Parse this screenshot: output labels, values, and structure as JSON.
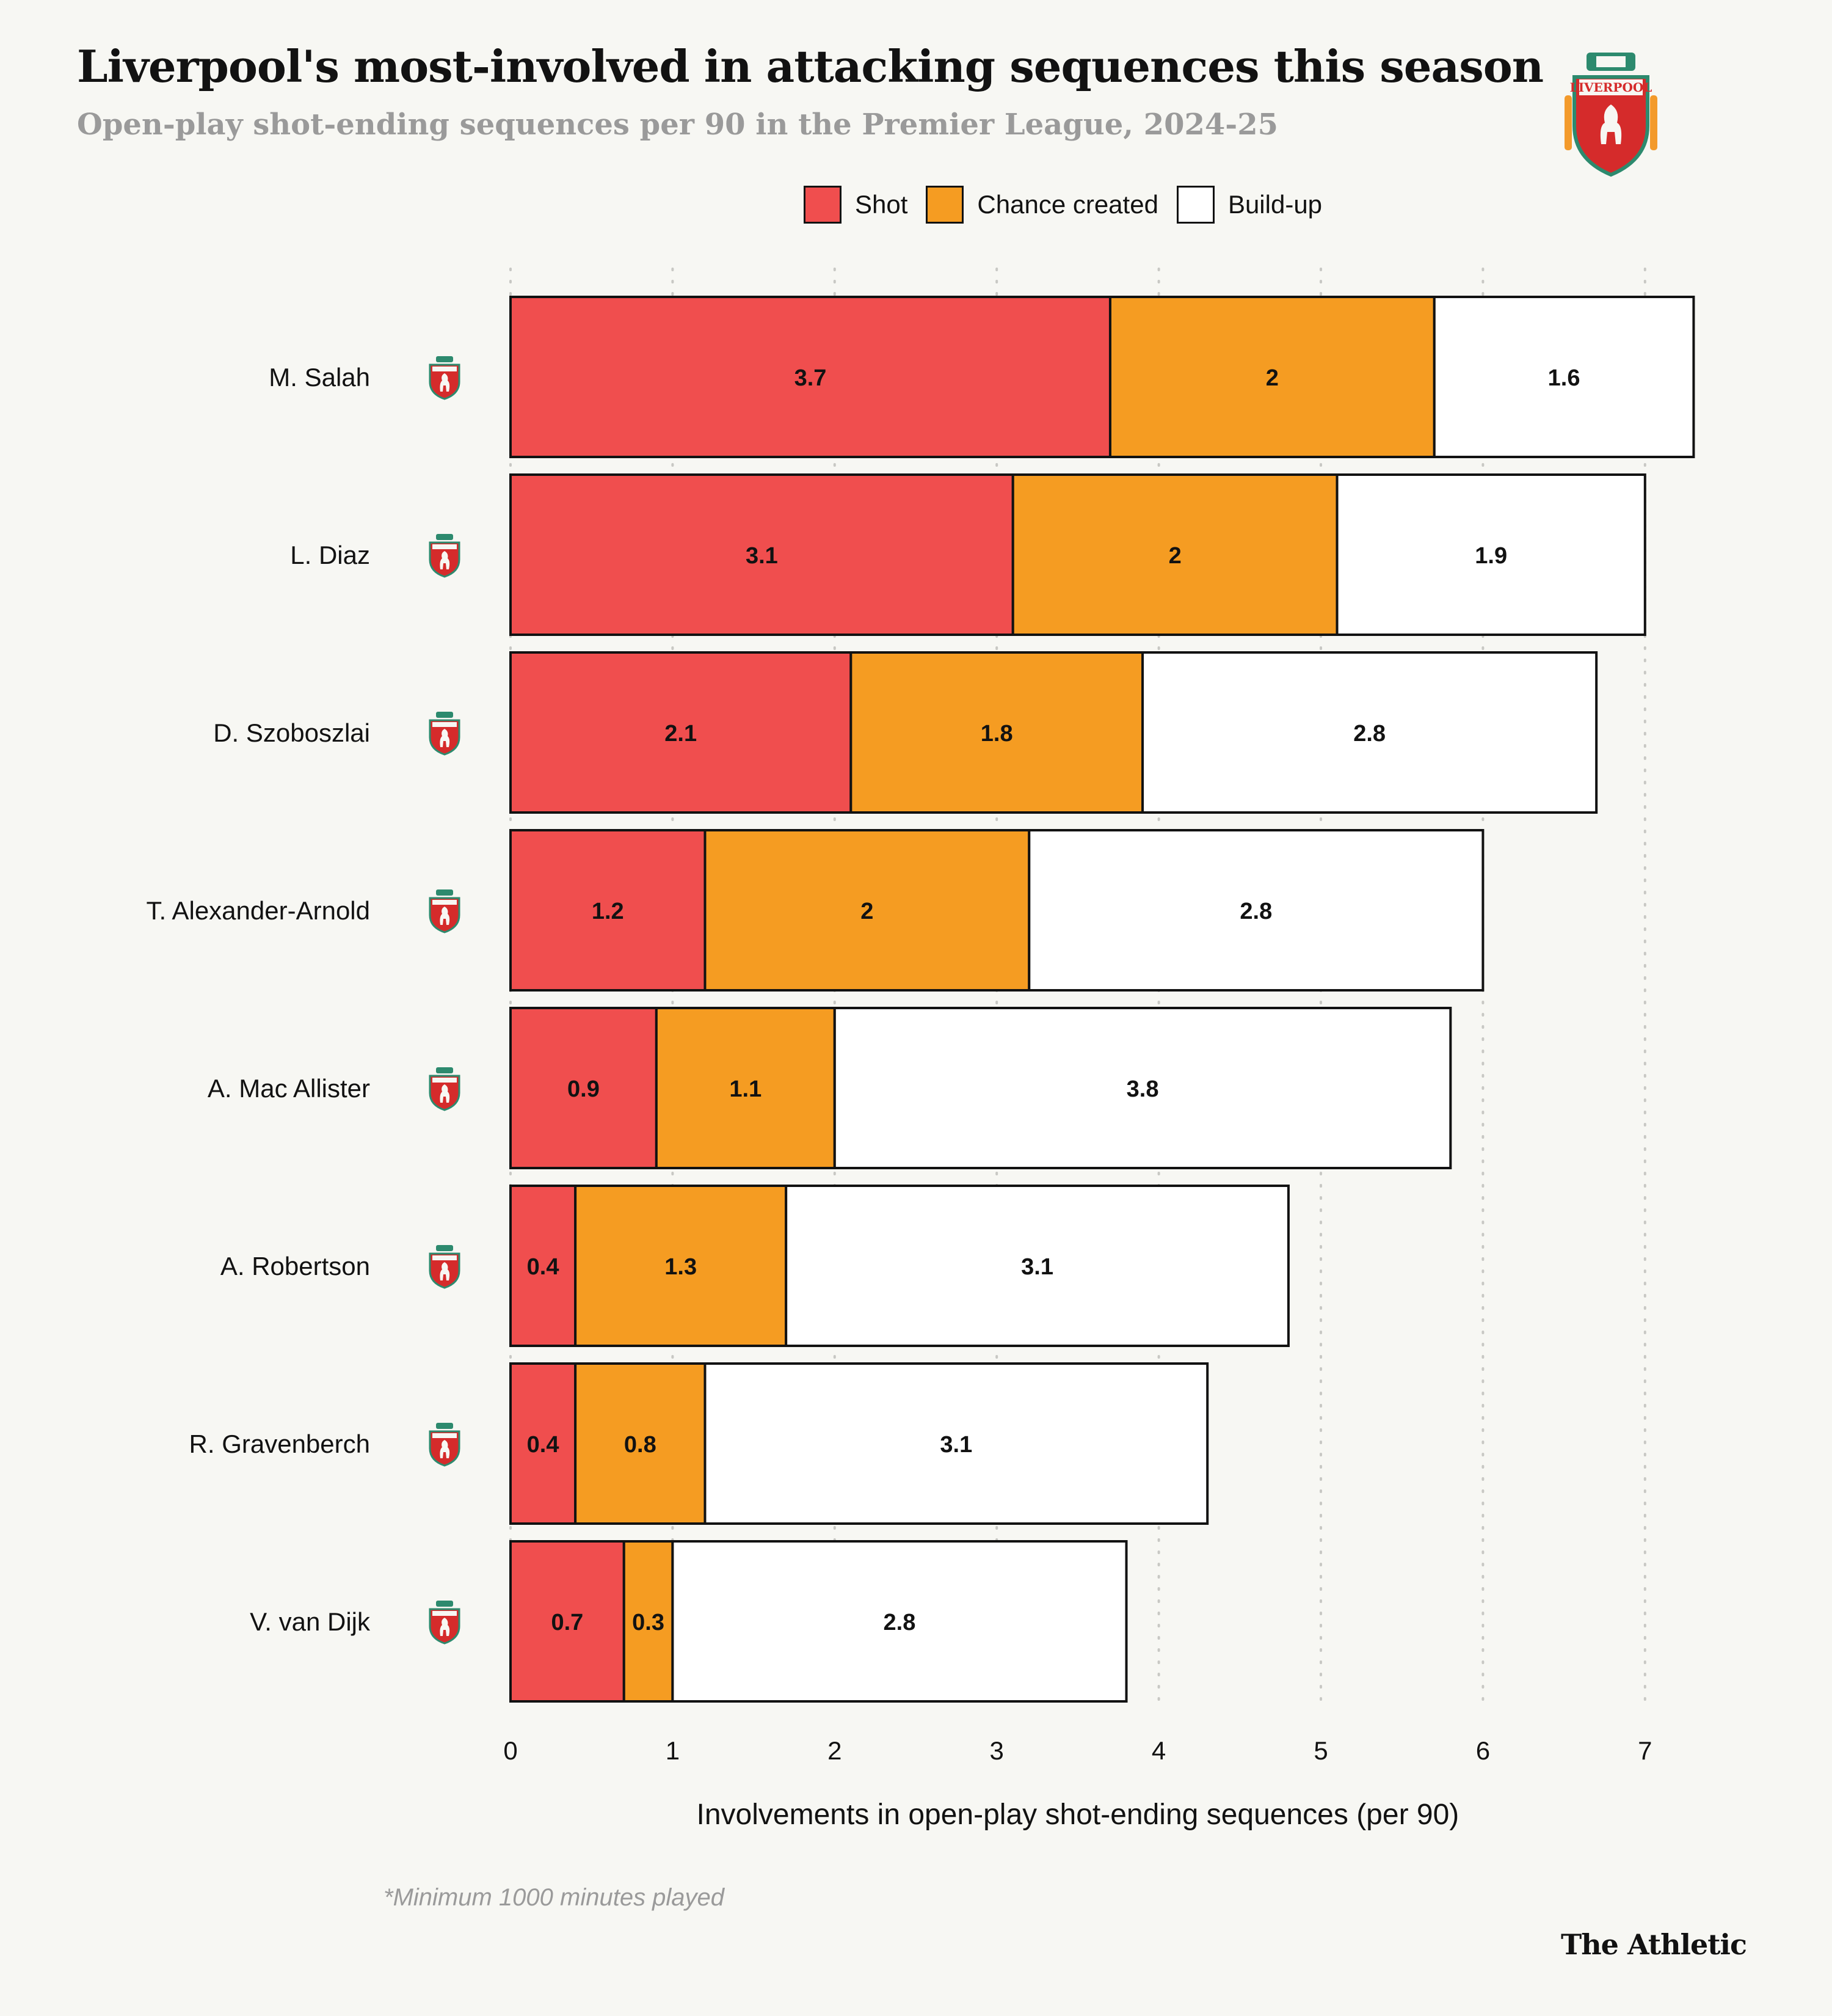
{
  "header": {
    "title": "Liverpool's most-involved in attacking sequences this season",
    "subtitle": "Open-play shot-ending sequences per 90 in the Premier League, 2024-25"
  },
  "legend": [
    {
      "label": "Shot",
      "color": "#f04e4e"
    },
    {
      "label": "Chance created",
      "color": "#f59c22"
    },
    {
      "label": "Build-up",
      "color": "#ffffff"
    }
  ],
  "chart_data": {
    "type": "bar",
    "orientation": "horizontal",
    "stacked": true,
    "categories": [
      "M. Salah",
      "L. Diaz",
      "D. Szoboszlai",
      "T. Alexander-Arnold",
      "A. Mac Allister",
      "A. Robertson",
      "R. Gravenberch",
      "V. van Dijk"
    ],
    "series": [
      {
        "name": "Shot",
        "color": "#f04e4e",
        "values": [
          3.7,
          3.1,
          2.1,
          1.2,
          0.9,
          0.4,
          0.4,
          0.7
        ]
      },
      {
        "name": "Chance created",
        "color": "#f59c22",
        "values": [
          2,
          2,
          1.8,
          2,
          1.1,
          1.3,
          0.8,
          0.3
        ]
      },
      {
        "name": "Build-up",
        "color": "#ffffff",
        "values": [
          1.6,
          1.9,
          2.8,
          2.8,
          3.8,
          3.1,
          3.1,
          2.8
        ]
      }
    ],
    "xlabel": "Involvements in open-play shot-ending sequences (per 90)",
    "xlim": [
      0,
      7
    ],
    "xticks": [
      0,
      1,
      2,
      3,
      4,
      5,
      6,
      7
    ],
    "grid": "vertical-dotted"
  },
  "footnote": "*Minimum 1000 minutes played",
  "brand": "The Athletic",
  "crest_text": "LIVERPOOL"
}
